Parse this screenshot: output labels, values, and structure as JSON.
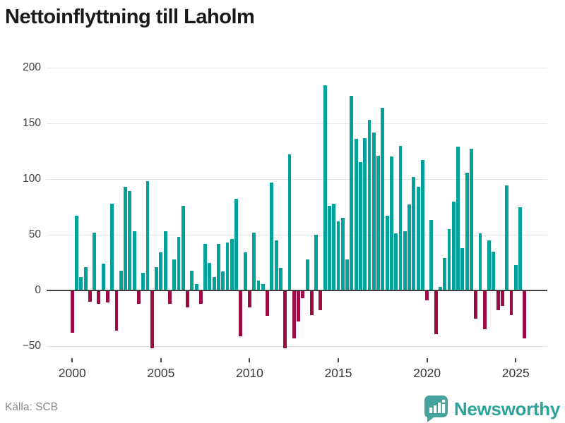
{
  "title": "Nettoinflyttning till Laholm",
  "footer": {
    "source": "Källa: SCB"
  },
  "logo": {
    "text": "Newsworthy",
    "icon": "newsworthy-chart-bubble-icon"
  },
  "colors": {
    "positive_bar": "#00a29b",
    "negative_bar": "#9e0c45",
    "gridline": "#e4e4e4",
    "zero_line": "#3f3f3f",
    "axis_text": "#3f3f3f",
    "title_text": "#1a1a1a",
    "source_text": "#8a8a8a",
    "logo_teal": "#44a39b"
  },
  "chart_data": {
    "type": "bar",
    "title": "Nettoinflyttning till Laholm",
    "xlabel": "",
    "ylabel": "",
    "ylim": [
      -50,
      200
    ],
    "y_ticks": [
      200,
      150,
      100,
      50,
      0,
      -50
    ],
    "y_tick_labels": [
      "200",
      "150",
      "100",
      "50",
      "0",
      "−50"
    ],
    "x_tick_labels": [
      "2000",
      "2005",
      "2010",
      "2015",
      "2020",
      "2025"
    ],
    "grid": "horizontal",
    "legend": "none",
    "frequency": "quarterly",
    "first_period": "2000 Q1",
    "last_period": "2025 Q3",
    "series": [
      {
        "year": 2000,
        "values": [
          -38,
          67,
          12,
          21
        ]
      },
      {
        "year": 2001,
        "values": [
          -10,
          52,
          -12,
          24
        ]
      },
      {
        "year": 2002,
        "values": [
          -11,
          78,
          -36,
          18
        ]
      },
      {
        "year": 2003,
        "values": [
          93,
          89,
          53,
          -12
        ]
      },
      {
        "year": 2004,
        "values": [
          16,
          98,
          -52,
          21
        ]
      },
      {
        "year": 2005,
        "values": [
          34,
          53,
          -12,
          28
        ]
      },
      {
        "year": 2006,
        "values": [
          48,
          76,
          -15,
          18
        ]
      },
      {
        "year": 2007,
        "values": [
          6,
          -12,
          42,
          25
        ]
      },
      {
        "year": 2008,
        "values": [
          12,
          42,
          17,
          43
        ]
      },
      {
        "year": 2009,
        "values": [
          46,
          82,
          -41,
          34
        ]
      },
      {
        "year": 2010,
        "values": [
          -15,
          52,
          9,
          6
        ]
      },
      {
        "year": 2011,
        "values": [
          -23,
          97,
          45,
          20
        ]
      },
      {
        "year": 2012,
        "values": [
          -52,
          122,
          -43,
          -28
        ]
      },
      {
        "year": 2013,
        "values": [
          -7,
          28,
          -22,
          50
        ]
      },
      {
        "year": 2014,
        "values": [
          -18,
          184,
          76,
          78
        ]
      },
      {
        "year": 2015,
        "values": [
          62,
          65,
          28,
          175
        ]
      },
      {
        "year": 2016,
        "values": [
          136,
          115,
          137,
          153
        ]
      },
      {
        "year": 2017,
        "values": [
          142,
          121,
          164,
          67
        ]
      },
      {
        "year": 2018,
        "values": [
          120,
          51,
          130,
          53
        ]
      },
      {
        "year": 2019,
        "values": [
          77,
          102,
          93,
          117
        ]
      },
      {
        "year": 2020,
        "values": [
          -9,
          63,
          -39,
          3
        ]
      },
      {
        "year": 2021,
        "values": [
          29,
          55,
          80,
          129
        ]
      },
      {
        "year": 2022,
        "values": [
          38,
          106,
          127,
          -25
        ]
      },
      {
        "year": 2023,
        "values": [
          51,
          -35,
          45,
          35
        ]
      },
      {
        "year": 2024,
        "values": [
          -18,
          -14,
          94,
          -22
        ]
      },
      {
        "year": 2025,
        "values": [
          23,
          75,
          -43
        ]
      }
    ]
  }
}
